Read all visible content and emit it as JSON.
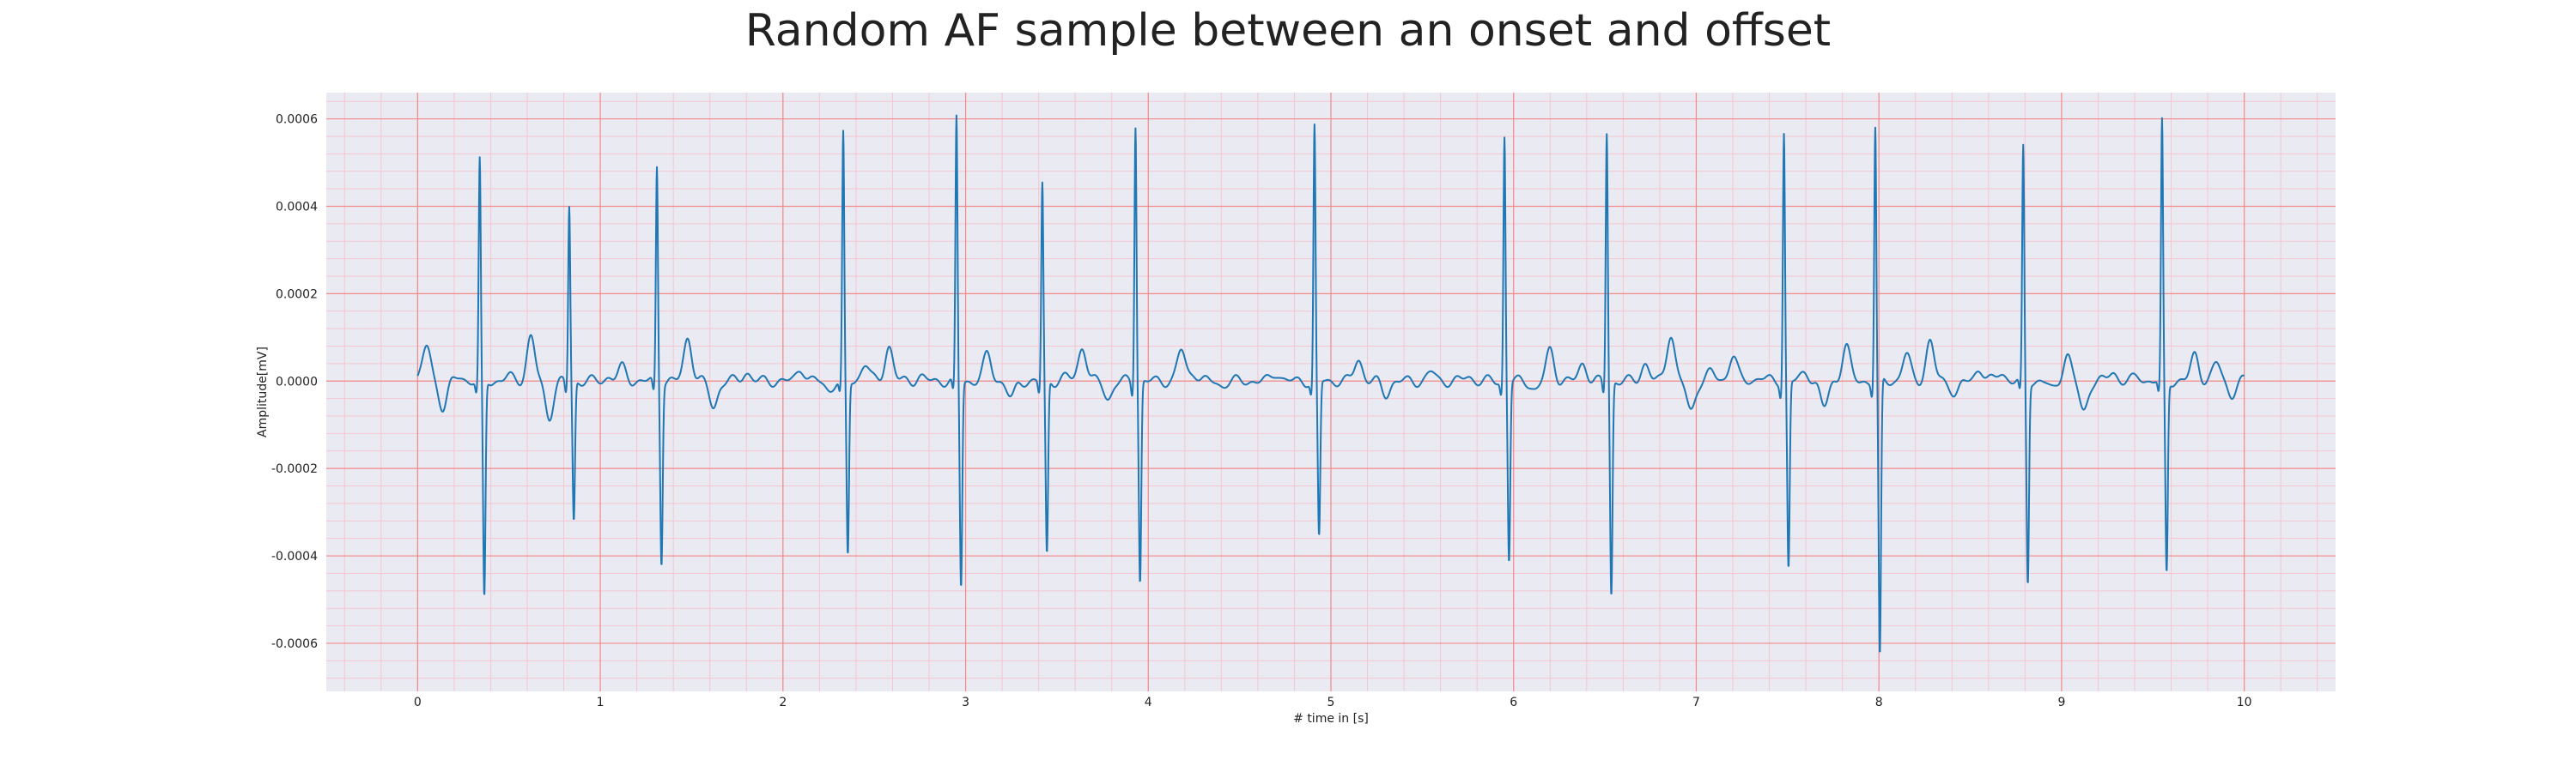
{
  "chart_data": {
    "type": "line",
    "title": "Random AF sample between an onset and offset",
    "xlabel": "# time in [s]",
    "ylabel": "Amplitude[mV]",
    "xlim": [
      -0.5,
      10.5
    ],
    "ylim": [
      -0.00071,
      0.00066
    ],
    "x_ticks": [
      0,
      1,
      2,
      3,
      4,
      5,
      6,
      7,
      8,
      9,
      10
    ],
    "y_ticks": [
      -0.0006,
      -0.0004,
      -0.0002,
      0.0,
      0.0002,
      0.0004,
      0.0006
    ],
    "y_tick_labels": [
      "-0.0006",
      "-0.0004",
      "-0.0002",
      "0.0000",
      "0.0002",
      "0.0004",
      "0.0006"
    ],
    "grid": true,
    "legend": "none",
    "series": [
      {
        "color": "#1f77b4",
        "beats": [
          {
            "t": 0.34,
            "r": 0.0005,
            "s": -0.0005
          },
          {
            "t": 0.83,
            "r": 0.0004,
            "s": -0.00032
          },
          {
            "t": 1.31,
            "r": 0.00049,
            "s": -0.00041
          },
          {
            "t": 2.33,
            "r": 0.00056,
            "s": -0.0004
          },
          {
            "t": 2.95,
            "r": 0.0006,
            "s": -0.00047
          },
          {
            "t": 3.42,
            "r": 0.00045,
            "s": -0.0004
          },
          {
            "t": 3.93,
            "r": 0.00059,
            "s": -0.00046
          },
          {
            "t": 4.91,
            "r": 0.00058,
            "s": -0.00036
          },
          {
            "t": 5.95,
            "r": 0.00056,
            "s": -0.00041
          },
          {
            "t": 6.51,
            "r": 0.00057,
            "s": -0.00049
          },
          {
            "t": 7.48,
            "r": 0.00057,
            "s": -0.00043
          },
          {
            "t": 7.98,
            "r": 0.00058,
            "s": -0.00064
          },
          {
            "t": 8.79,
            "r": 0.00053,
            "s": -0.00046
          },
          {
            "t": 9.55,
            "r": 0.00059,
            "s": -0.00044
          }
        ],
        "baseline_waves": [
          {
            "t": 0.05,
            "v": 8e-05
          },
          {
            "t": 0.14,
            "v": -6e-05
          },
          {
            "t": 0.23,
            "v": 1e-05
          },
          {
            "t": 0.5,
            "v": 1e-05
          },
          {
            "t": 0.62,
            "v": 0.0001
          },
          {
            "t": 0.72,
            "v": -8e-05
          },
          {
            "t": 1.05,
            "v": 1e-05
          },
          {
            "t": 1.12,
            "v": 3e-05
          },
          {
            "t": 1.48,
            "v": 0.0001
          },
          {
            "t": 1.62,
            "v": -6e-05
          },
          {
            "t": 1.8,
            "v": 2e-05
          },
          {
            "t": 2.1,
            "v": 3e-05
          },
          {
            "t": 2.25,
            "v": -2e-05
          },
          {
            "t": 2.45,
            "v": 4e-05
          },
          {
            "t": 2.58,
            "v": 8e-05
          },
          {
            "t": 2.75,
            "v": 1e-05
          },
          {
            "t": 3.12,
            "v": 6e-05
          },
          {
            "t": 3.25,
            "v": -4e-05
          },
          {
            "t": 3.55,
            "v": 1e-05
          },
          {
            "t": 3.64,
            "v": 8e-05
          },
          {
            "t": 3.78,
            "v": -4e-05
          },
          {
            "t": 4.18,
            "v": 7e-05
          },
          {
            "t": 4.25,
            "v": 2e-05
          },
          {
            "t": 4.4,
            "v": -1e-05
          },
          {
            "t": 4.7,
            "v": 2e-05
          },
          {
            "t": 5.15,
            "v": 5e-05
          },
          {
            "t": 5.3,
            "v": -3e-05
          },
          {
            "t": 5.55,
            "v": 2e-05
          },
          {
            "t": 5.75,
            "v": 1e-05
          },
          {
            "t": 6.12,
            "v": -2e-05
          },
          {
            "t": 6.2,
            "v": 7e-05
          },
          {
            "t": 6.38,
            "v": 4e-05
          },
          {
            "t": 6.72,
            "v": 4e-05
          },
          {
            "t": 6.86,
            "v": 0.00011
          },
          {
            "t": 6.97,
            "v": -7e-05
          },
          {
            "t": 7.08,
            "v": 2e-05
          },
          {
            "t": 7.2,
            "v": 6e-05
          },
          {
            "t": 7.35,
            "v": 1e-05
          },
          {
            "t": 7.6,
            "v": 2e-05
          },
          {
            "t": 7.7,
            "v": -6e-05
          },
          {
            "t": 7.82,
            "v": 8e-05
          },
          {
            "t": 8.15,
            "v": 6e-05
          },
          {
            "t": 8.28,
            "v": 9e-05
          },
          {
            "t": 8.42,
            "v": -3e-05
          },
          {
            "t": 8.55,
            "v": 3e-05
          },
          {
            "t": 8.67,
            "v": 2e-05
          },
          {
            "t": 8.95,
            "v": -2e-05
          },
          {
            "t": 9.03,
            "v": 6e-05
          },
          {
            "t": 9.12,
            "v": -7e-05
          },
          {
            "t": 9.28,
            "v": 2e-05
          },
          {
            "t": 9.42,
            "v": 1e-05
          },
          {
            "t": 9.73,
            "v": 6e-05
          },
          {
            "t": 9.85,
            "v": 4e-05
          },
          {
            "t": 9.93,
            "v": -3e-05
          }
        ]
      }
    ],
    "colors": {
      "plot_background": "#eaeaf2",
      "major_grid": "#f28a8a",
      "minor_grid": "#f5c6cf",
      "line": "#1f77b4"
    }
  }
}
